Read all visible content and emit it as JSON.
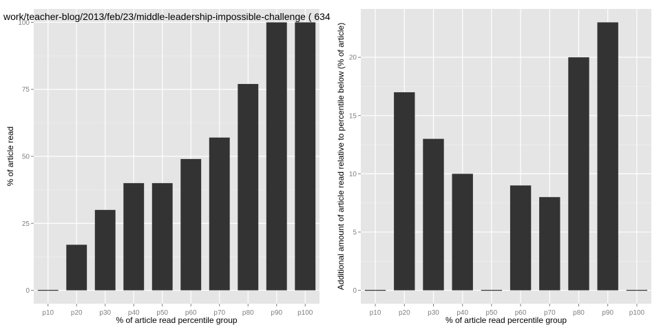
{
  "figure": {
    "title": "work/teacher-blog/2013/feb/23/middle-leadership-impossible-challenge ( 634"
  },
  "colors": {
    "panel_bg": "#E5E5E5",
    "grid_major": "#FFFFFF",
    "grid_minor": "#F2F2F2",
    "bar_fill": "#333333",
    "tick_text": "#7F7F7F"
  },
  "chart_data": [
    {
      "type": "bar",
      "title": "work/teacher-blog/2013/feb/23/middle-leadership-impossible-challenge ( 634",
      "xlabel": "% of article read percentile group",
      "ylabel": "% of article read",
      "categories": [
        "p10",
        "p20",
        "p30",
        "p40",
        "p50",
        "p60",
        "p70",
        "p80",
        "p90",
        "p100"
      ],
      "values": [
        0,
        17,
        30,
        40,
        40,
        49,
        57,
        77,
        100,
        100
      ],
      "ylim": [
        -5,
        105
      ],
      "yticks": [
        0,
        25,
        50,
        75,
        100
      ],
      "grid": true,
      "legend": "none"
    },
    {
      "type": "bar",
      "title": "",
      "xlabel": "% of article read percentile group",
      "ylabel": "Additional amount of article read relative to percentile below (% of article)",
      "categories": [
        "p10",
        "p20",
        "p30",
        "p40",
        "p50",
        "p60",
        "p70",
        "p80",
        "p90",
        "p100"
      ],
      "values": [
        0,
        17,
        13,
        10,
        0,
        9,
        8,
        20,
        23,
        0
      ],
      "ylim": [
        -1.15,
        24.15
      ],
      "yticks": [
        0,
        5,
        10,
        15,
        20
      ],
      "grid": true,
      "legend": "none"
    }
  ]
}
